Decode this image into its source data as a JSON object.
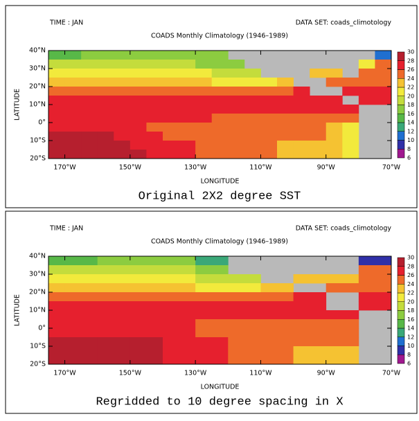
{
  "chart_data": [
    {
      "type": "heatmap",
      "subtitle_left": "TIME : JAN",
      "subtitle_right": "DATA SET: coads_climotology",
      "title": "COADS Monthly Climatology (1946–1989)",
      "xlabel": "LONGITUDE",
      "ylabel": "LATITUDE",
      "caption": "Original 2X2 degree SST",
      "xlim": [
        -175,
        -70
      ],
      "ylim": [
        -20,
        40
      ],
      "xticks": [
        {
          "value": -170,
          "label": "170°W"
        },
        {
          "value": -150,
          "label": "150°W"
        },
        {
          "value": -130,
          "label": "130°W"
        },
        {
          "value": -110,
          "label": "110°W"
        },
        {
          "value": -90,
          "label": "90°W"
        },
        {
          "value": -70,
          "label": "70°W"
        }
      ],
      "yticks": [
        {
          "value": 40,
          "label": "40°N"
        },
        {
          "value": 30,
          "label": "30°N"
        },
        {
          "value": 20,
          "label": "20°N"
        },
        {
          "value": 10,
          "label": "10°N"
        },
        {
          "value": 0,
          "label": "0°"
        },
        {
          "value": -10,
          "label": "10°S"
        },
        {
          "value": -20,
          "label": "20°S"
        }
      ],
      "xbins": [
        -175,
        -170,
        -165,
        -160,
        -155,
        -150,
        -145,
        -140,
        -135,
        -130,
        -125,
        -120,
        -115,
        -110,
        -105,
        -100,
        -95,
        -90,
        -85,
        -80,
        -75,
        -70
      ],
      "ybins": [
        40,
        35,
        30,
        25,
        20,
        15,
        10,
        5,
        0,
        -5,
        -10,
        -15,
        -20
      ],
      "values": [
        [
          15,
          15,
          17,
          17,
          17,
          17,
          17,
          17,
          17,
          17,
          17,
          null,
          null,
          null,
          null,
          null,
          null,
          null,
          null,
          null,
          11
        ],
        [
          19,
          19,
          19,
          19,
          19,
          19,
          19,
          19,
          19,
          17,
          17,
          17,
          null,
          null,
          null,
          null,
          null,
          null,
          null,
          21,
          25
        ],
        [
          21,
          21,
          21,
          21,
          21,
          21,
          21,
          21,
          21,
          21,
          19,
          19,
          19,
          null,
          null,
          null,
          23,
          23,
          null,
          25,
          25
        ],
        [
          23,
          23,
          23,
          23,
          23,
          23,
          23,
          23,
          23,
          23,
          21,
          21,
          21,
          21,
          23,
          null,
          null,
          25,
          25,
          25,
          25
        ],
        [
          25,
          25,
          25,
          25,
          25,
          25,
          25,
          25,
          25,
          25,
          25,
          25,
          25,
          25,
          25,
          27,
          null,
          null,
          27,
          27,
          27
        ],
        [
          27,
          27,
          27,
          27,
          27,
          27,
          27,
          27,
          27,
          27,
          27,
          27,
          27,
          27,
          27,
          27,
          27,
          27,
          null,
          27,
          27
        ],
        [
          27,
          27,
          27,
          27,
          27,
          27,
          27,
          27,
          27,
          27,
          27,
          27,
          27,
          27,
          27,
          27,
          27,
          27,
          27,
          null,
          null
        ],
        [
          27,
          27,
          27,
          27,
          27,
          27,
          27,
          27,
          27,
          27,
          25,
          25,
          25,
          25,
          25,
          25,
          25,
          25,
          25,
          null,
          null
        ],
        [
          27,
          27,
          27,
          27,
          27,
          27,
          25,
          25,
          25,
          25,
          25,
          25,
          25,
          25,
          25,
          25,
          25,
          23,
          21,
          null,
          null
        ],
        [
          29,
          29,
          29,
          29,
          27,
          27,
          27,
          25,
          25,
          25,
          25,
          25,
          25,
          25,
          25,
          25,
          25,
          23,
          21,
          null,
          null
        ],
        [
          29,
          29,
          29,
          29,
          29,
          27,
          27,
          27,
          27,
          25,
          25,
          25,
          25,
          25,
          23,
          23,
          23,
          23,
          21,
          null,
          null
        ],
        [
          29,
          29,
          29,
          29,
          29,
          29,
          27,
          27,
          27,
          25,
          25,
          25,
          25,
          25,
          23,
          23,
          23,
          23,
          21,
          null,
          null
        ]
      ],
      "colorbar": {
        "levels": [
          6,
          8,
          10,
          12,
          14,
          16,
          18,
          20,
          22,
          24,
          26,
          28,
          30
        ],
        "colors": [
          "#a0188f",
          "#3030a8",
          "#1f6fd0",
          "#3aa878",
          "#58b848",
          "#8ccc40",
          "#c4dc3c",
          "#f2ea3c",
          "#f5c232",
          "#ee6a2a",
          "#e6202e",
          "#b61f2e"
        ]
      },
      "missing_color": "#b9b9b9"
    },
    {
      "type": "heatmap",
      "subtitle_left": "TIME : JAN",
      "subtitle_right": "DATA SET: coads_climotology",
      "title": "COADS Monthly Climatology (1946–1989)",
      "xlabel": "LONGITUDE",
      "ylabel": "LATITUDE",
      "caption": "Regridded to 10 degree spacing in X",
      "xlim": [
        -175,
        -70
      ],
      "ylim": [
        -20,
        40
      ],
      "xticks": [
        {
          "value": -170,
          "label": "170°W"
        },
        {
          "value": -150,
          "label": "150°W"
        },
        {
          "value": -130,
          "label": "130°W"
        },
        {
          "value": -110,
          "label": "110°W"
        },
        {
          "value": -90,
          "label": "90°W"
        },
        {
          "value": -70,
          "label": "70°W"
        }
      ],
      "yticks": [
        {
          "value": 40,
          "label": "40°N"
        },
        {
          "value": 30,
          "label": "30°N"
        },
        {
          "value": 20,
          "label": "20°N"
        },
        {
          "value": 10,
          "label": "10°N"
        },
        {
          "value": 0,
          "label": "0°"
        },
        {
          "value": -10,
          "label": "10°S"
        },
        {
          "value": -20,
          "label": "20°S"
        }
      ],
      "xbins": [
        -175,
        -170,
        -160,
        -150,
        -140,
        -130,
        -120,
        -110,
        -100,
        -90,
        -80,
        -70
      ],
      "ybins": [
        40,
        35,
        30,
        25,
        20,
        15,
        10,
        5,
        0,
        -5,
        -10,
        -15,
        -20
      ],
      "values": [
        [
          15,
          15,
          17,
          17,
          17,
          13,
          null,
          null,
          null,
          null,
          9
        ],
        [
          19,
          19,
          19,
          19,
          19,
          17,
          null,
          null,
          null,
          null,
          25
        ],
        [
          21,
          21,
          21,
          21,
          21,
          19,
          19,
          null,
          23,
          23,
          25
        ],
        [
          23,
          23,
          23,
          23,
          23,
          21,
          21,
          23,
          null,
          25,
          25
        ],
        [
          25,
          25,
          25,
          25,
          25,
          25,
          25,
          25,
          27,
          null,
          27
        ],
        [
          27,
          27,
          27,
          27,
          27,
          27,
          27,
          27,
          27,
          null,
          27
        ],
        [
          27,
          27,
          27,
          27,
          27,
          27,
          27,
          27,
          27,
          27,
          null
        ],
        [
          27,
          27,
          27,
          27,
          27,
          25,
          25,
          25,
          25,
          25,
          null
        ],
        [
          27,
          27,
          27,
          27,
          27,
          25,
          25,
          25,
          25,
          25,
          null
        ],
        [
          29,
          29,
          29,
          29,
          27,
          27,
          25,
          25,
          25,
          25,
          null
        ],
        [
          29,
          29,
          29,
          29,
          27,
          27,
          25,
          25,
          23,
          23,
          null
        ],
        [
          29,
          29,
          29,
          29,
          27,
          27,
          25,
          25,
          23,
          23,
          null
        ]
      ],
      "colorbar": {
        "levels": [
          6,
          8,
          10,
          12,
          14,
          16,
          18,
          20,
          22,
          24,
          26,
          28,
          30
        ],
        "colors": [
          "#a0188f",
          "#3030a8",
          "#1f6fd0",
          "#3aa878",
          "#58b848",
          "#8ccc40",
          "#c4dc3c",
          "#f2ea3c",
          "#f5c232",
          "#ee6a2a",
          "#e6202e",
          "#b61f2e"
        ]
      },
      "missing_color": "#b9b9b9"
    }
  ]
}
